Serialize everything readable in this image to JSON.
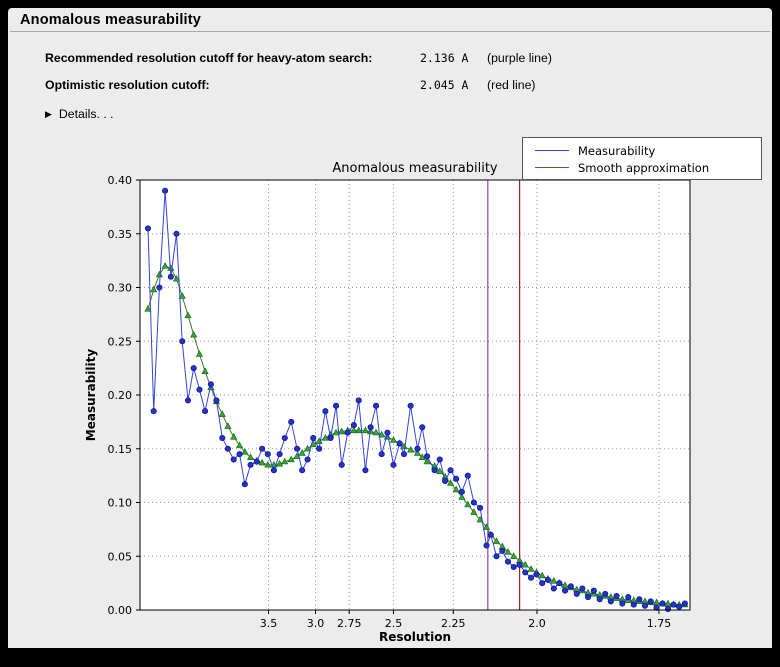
{
  "panel": {
    "title": "Anomalous measurability"
  },
  "info": {
    "rows": [
      {
        "label": "Recommended resolution cutoff for heavy-atom search:",
        "value": "2.136 A",
        "note": "(purple line)"
      },
      {
        "label": "Optimistic resolution cutoff:",
        "value": "2.045 A",
        "note": "(red line)"
      }
    ],
    "details_label": "Details. . ."
  },
  "icons": {
    "disclosure": "▶"
  },
  "colors": {
    "screen_bg": "#000000",
    "window_bg": "#ececec",
    "purple_line": "#a040a0",
    "red_line": "#a02020",
    "blue": "#2233cc",
    "green": "#447722"
  },
  "chart_data": {
    "type": "line",
    "title": "Anomalous measurability",
    "xlabel": "Resolution",
    "ylabel": "Measurability",
    "x_scale": "resolution_in_angstrom_plotted_as_1_over_d_squared",
    "xlim_s": [
      0.001,
      0.346
    ],
    "ylim": [
      0.0,
      0.4
    ],
    "y_ticks": [
      0.0,
      0.05,
      0.1,
      0.15,
      0.2,
      0.25,
      0.3,
      0.35,
      0.4
    ],
    "x_ticks": [
      3.5,
      3.0,
      2.75,
      2.5,
      2.25,
      2.0,
      1.75
    ],
    "x_tick_labels": [
      "3.5",
      "3.0",
      "2.75",
      "2.5",
      "2.25",
      "2.0",
      "1.75"
    ],
    "grid": true,
    "grid_color": "#999999",
    "legend_position": "top-right",
    "vlines": [
      {
        "d": 2.136,
        "color": "#a040a0",
        "name": "purple line (recommended cutoff)"
      },
      {
        "d": 2.045,
        "color": "#a02020",
        "name": "red line (optimistic cutoff)"
      }
    ],
    "x_d": [
      12.91,
      10.21,
      8.71,
      7.73,
      7.01,
      6.47,
      6.03,
      5.67,
      5.37,
      5.11,
      4.89,
      4.69,
      4.52,
      4.36,
      4.22,
      4.09,
      3.97,
      3.87,
      3.77,
      3.67,
      3.59,
      3.51,
      3.43,
      3.36,
      3.3,
      3.23,
      3.17,
      3.12,
      3.07,
      3.02,
      2.97,
      2.92,
      2.88,
      2.84,
      2.8,
      2.76,
      2.72,
      2.69,
      2.65,
      2.62,
      2.59,
      2.56,
      2.53,
      2.5,
      2.47,
      2.45,
      2.42,
      2.39,
      2.37,
      2.35,
      2.32,
      2.3,
      2.28,
      2.26,
      2.24,
      2.22,
      2.2,
      2.18,
      2.16,
      2.14,
      2.127,
      2.11,
      2.093,
      2.077,
      2.061,
      2.045,
      2.03,
      2.015,
      2.001,
      1.987,
      1.973,
      1.959,
      1.946,
      1.933,
      1.92,
      1.907,
      1.895,
      1.883,
      1.871,
      1.859,
      1.848,
      1.837,
      1.826,
      1.815,
      1.804,
      1.794,
      1.784,
      1.774,
      1.764,
      1.754,
      1.744,
      1.735,
      1.726,
      1.717,
      1.708
    ],
    "series": [
      {
        "name": "Measurability",
        "marker": "circle",
        "line_color": "#3344dd",
        "marker_color": "#2233cc",
        "marker_edge": "#111188",
        "y": [
          0.355,
          0.185,
          0.3,
          0.39,
          0.31,
          0.35,
          0.25,
          0.195,
          0.225,
          0.205,
          0.185,
          0.21,
          0.195,
          0.16,
          0.15,
          0.14,
          0.145,
          0.117,
          0.135,
          0.138,
          0.15,
          0.145,
          0.13,
          0.145,
          0.16,
          0.175,
          0.15,
          0.13,
          0.14,
          0.16,
          0.15,
          0.185,
          0.16,
          0.19,
          0.135,
          0.165,
          0.172,
          0.195,
          0.13,
          0.17,
          0.19,
          0.145,
          0.165,
          0.135,
          0.155,
          0.145,
          0.19,
          0.15,
          0.17,
          0.143,
          0.13,
          0.14,
          0.12,
          0.13,
          0.122,
          0.11,
          0.125,
          0.1,
          0.095,
          0.06,
          0.07,
          0.05,
          0.055,
          0.045,
          0.04,
          0.042,
          0.035,
          0.03,
          0.033,
          0.025,
          0.028,
          0.02,
          0.025,
          0.018,
          0.022,
          0.015,
          0.02,
          0.012,
          0.018,
          0.01,
          0.015,
          0.008,
          0.013,
          0.006,
          0.012,
          0.005,
          0.01,
          0.004,
          0.008,
          0.002,
          0.006,
          0.001,
          0.005,
          0.003,
          0.006
        ]
      },
      {
        "name": "Smooth approximation",
        "marker": "triangle",
        "line_color": "#447722",
        "marker_color": "#33aa33",
        "marker_edge": "#1c6b1c",
        "y": [
          0.28,
          0.298,
          0.312,
          0.32,
          0.318,
          0.308,
          0.292,
          0.274,
          0.256,
          0.238,
          0.222,
          0.207,
          0.194,
          0.182,
          0.171,
          0.161,
          0.153,
          0.147,
          0.142,
          0.139,
          0.137,
          0.135,
          0.135,
          0.136,
          0.138,
          0.14,
          0.143,
          0.146,
          0.15,
          0.154,
          0.157,
          0.16,
          0.163,
          0.165,
          0.166,
          0.167,
          0.167,
          0.167,
          0.167,
          0.166,
          0.165,
          0.163,
          0.161,
          0.158,
          0.155,
          0.152,
          0.149,
          0.146,
          0.142,
          0.138,
          0.134,
          0.129,
          0.124,
          0.118,
          0.112,
          0.105,
          0.098,
          0.091,
          0.084,
          0.077,
          0.07,
          0.064,
          0.059,
          0.054,
          0.05,
          0.046,
          0.042,
          0.038,
          0.035,
          0.032,
          0.029,
          0.027,
          0.025,
          0.023,
          0.021,
          0.019,
          0.018,
          0.016,
          0.015,
          0.014,
          0.013,
          0.012,
          0.011,
          0.01,
          0.009,
          0.009,
          0.008,
          0.008,
          0.007,
          0.007,
          0.006,
          0.006,
          0.005,
          0.005,
          0.005
        ]
      }
    ]
  }
}
